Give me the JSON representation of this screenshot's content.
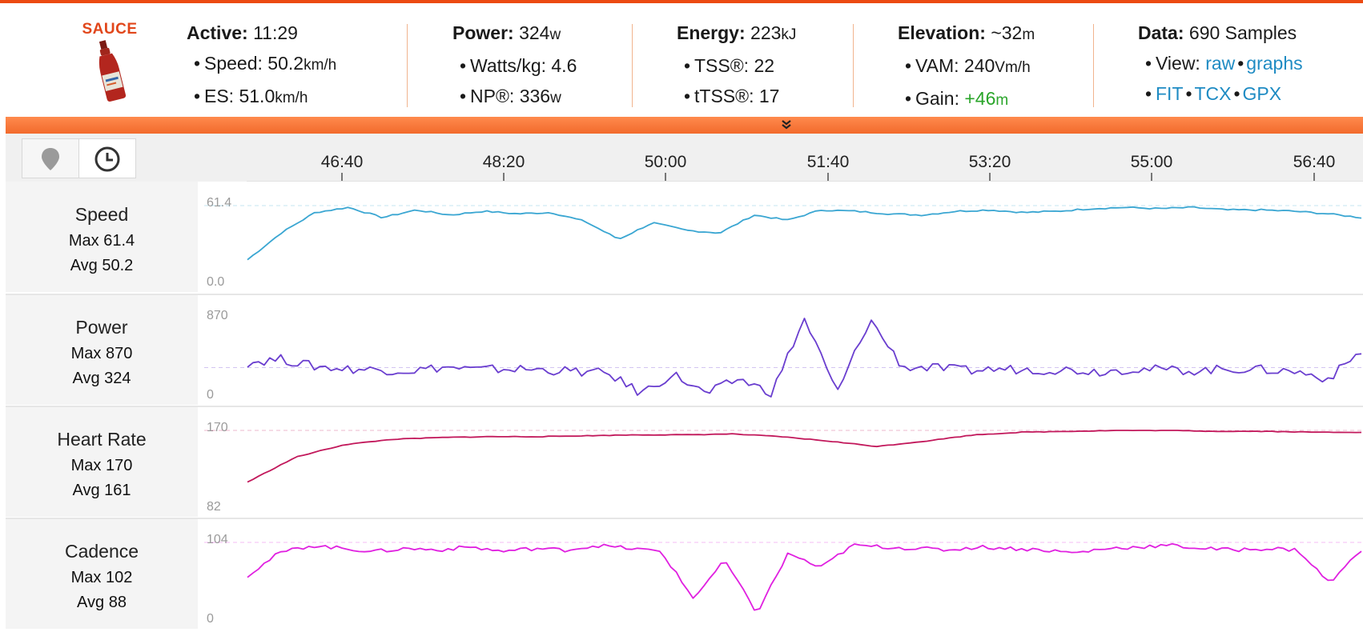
{
  "header": {
    "logo_text": "SAUCE",
    "active": {
      "label": "Active:",
      "value": "11:29"
    },
    "speed": {
      "label": "Speed:",
      "value": "50.2",
      "unit": "km/h"
    },
    "es": {
      "label": "ES:",
      "value": "51.0",
      "unit": "km/h"
    },
    "power": {
      "label": "Power:",
      "value": "324",
      "unit": "w"
    },
    "wkg": {
      "label": "Watts/kg:",
      "value": "4.6"
    },
    "np": {
      "label": "NP®:",
      "value": "336",
      "unit": "w"
    },
    "energy": {
      "label": "Energy:",
      "value": "223",
      "unit": "kJ"
    },
    "tss": {
      "label": "TSS®:",
      "value": "22"
    },
    "ttss": {
      "label": "tTSS®:",
      "value": "17"
    },
    "elevation": {
      "label": "Elevation:",
      "value": "~32",
      "unit": "m"
    },
    "vam": {
      "label": "VAM:",
      "value": "240",
      "unit": "Vm/h"
    },
    "gain": {
      "label": "Gain:",
      "value": "+46",
      "unit": "m"
    },
    "data": {
      "label": "Data:",
      "value": "690 Samples"
    },
    "view_label": "View:",
    "links": {
      "raw": "raw",
      "graphs": "graphs",
      "fit": "FIT",
      "tcx": "TCX",
      "gpx": "GPX"
    },
    "bullet": "•"
  },
  "colors": {
    "accent": "#ec4a12",
    "speed": "#3aa6d2",
    "power": "#6a3ecf",
    "heart_rate": "#c2185b",
    "cadence": "#e020e0",
    "link": "#1e8bc3",
    "gain": "#2aa52a"
  },
  "toolbar": {
    "map_icon": "map-pin-icon",
    "time_icon": "clock-icon",
    "collapse_icon": "double-chevron-down-icon",
    "collapse_glyph": "»"
  },
  "time_axis": [
    "46:40",
    "48:20",
    "50:00",
    "51:40",
    "53:20",
    "55:00",
    "56:40"
  ],
  "panels": [
    {
      "name": "Speed",
      "max": "Max 61.4",
      "avg": "Avg 50.2",
      "axis_top": "61.4",
      "axis_bottom": "0.0"
    },
    {
      "name": "Power",
      "max": "Max 870",
      "avg": "Avg 324",
      "axis_top": "870",
      "axis_bottom": "0"
    },
    {
      "name": "Heart Rate",
      "max": "Max 170",
      "avg": "Avg 161",
      "axis_top": "170",
      "axis_bottom": "82"
    },
    {
      "name": "Cadence",
      "max": "Max 102",
      "avg": "Avg 88",
      "axis_top": "104",
      "axis_bottom": "0"
    }
  ],
  "chart_data": [
    {
      "type": "line",
      "name": "Speed",
      "ylim": [
        0,
        61.4
      ],
      "y": [
        19,
        40,
        56,
        60,
        52,
        58,
        54,
        57,
        55,
        56,
        49,
        35,
        48,
        42,
        40,
        54,
        50,
        58,
        57,
        55,
        54,
        57,
        58,
        56,
        57,
        59,
        60,
        59,
        60,
        58,
        58,
        57,
        55,
        52
      ]
    },
    {
      "type": "line",
      "name": "Power",
      "ylim": [
        0,
        870
      ],
      "y": [
        380,
        420,
        340,
        310,
        300,
        290,
        330,
        300,
        310,
        300,
        280,
        260,
        40,
        250,
        30,
        200,
        40,
        870,
        40,
        860,
        330,
        320,
        290,
        310,
        300,
        300,
        280,
        310,
        300,
        290,
        310,
        300,
        280,
        200,
        510
      ]
    },
    {
      "type": "line",
      "name": "Heart Rate",
      "ylim": [
        82,
        170
      ],
      "y": [
        112,
        140,
        154,
        160,
        162,
        163,
        163,
        164,
        165,
        165,
        166,
        163,
        158,
        152,
        158,
        165,
        168,
        169,
        170,
        170,
        169,
        169,
        168,
        168
      ]
    },
    {
      "type": "line",
      "name": "Cadence",
      "ylim": [
        0,
        104
      ],
      "y": [
        60,
        90,
        100,
        96,
        92,
        96,
        94,
        98,
        92,
        96,
        94,
        100,
        96,
        92,
        30,
        80,
        10,
        90,
        70,
        100,
        98,
        96,
        94,
        98,
        96,
        94,
        90,
        96,
        98,
        100,
        96,
        94,
        96,
        94,
        50,
        94
      ]
    }
  ]
}
